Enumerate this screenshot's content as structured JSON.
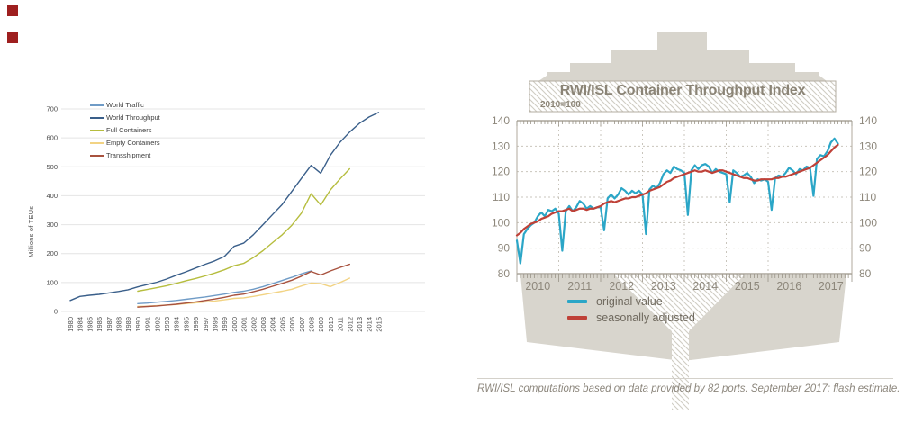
{
  "markers": {
    "color": "#9e1f1f"
  },
  "chart_data": [
    {
      "type": "line",
      "name": "world-container-traffic-chart",
      "ylabel": "Millions of TEUs",
      "y_ticks": [
        0,
        100,
        200,
        300,
        400,
        500,
        600,
        700
      ],
      "ylim": [
        0,
        700
      ],
      "grid": "horizontal",
      "legend_position": "top-left-inside",
      "categories": [
        "1980",
        "1984",
        "1985",
        "1986",
        "1987",
        "1988",
        "1989",
        "1990",
        "1991",
        "1992",
        "1993",
        "1994",
        "1995",
        "1996",
        "1997",
        "1998",
        "1999",
        "2000",
        "2001",
        "2002",
        "2003",
        "2004",
        "2005",
        "2006",
        "2007",
        "2008",
        "2009",
        "2010",
        "2011",
        "2012",
        "2013",
        "2014",
        "2015"
      ],
      "series": [
        {
          "name": "World Traffic",
          "color": "#6f9bc6",
          "start_index": 7,
          "values": [
            27,
            29,
            32,
            35,
            38,
            42,
            46,
            50,
            55,
            60,
            66,
            70,
            77,
            86,
            96,
            107,
            118,
            130,
            140
          ]
        },
        {
          "name": "World Throughput",
          "color": "#3a5f8a",
          "start_index": 0,
          "values": [
            38,
            52,
            56,
            59,
            64,
            69,
            75,
            85,
            93,
            101,
            112,
            125,
            137,
            150,
            163,
            175,
            190,
            225,
            236,
            265,
            300,
            335,
            370,
            415,
            460,
            505,
            478,
            540,
            585,
            620,
            650,
            672,
            688
          ]
        },
        {
          "name": "Full Containers",
          "color": "#b6bd3e",
          "start_index": 7,
          "values": [
            70,
            76,
            82,
            89,
            97,
            106,
            114,
            123,
            133,
            144,
            158,
            166,
            186,
            210,
            238,
            265,
            298,
            340,
            407,
            368,
            420,
            458,
            493
          ]
        },
        {
          "name": "Empty Containers",
          "color": "#f2d383",
          "start_index": 7,
          "values": [
            17,
            18,
            20,
            22,
            24,
            27,
            30,
            33,
            36,
            40,
            45,
            47,
            52,
            58,
            64,
            70,
            77,
            88,
            98,
            96,
            86,
            100,
            115
          ]
        },
        {
          "name": "Transshipment",
          "color": "#a8523e",
          "start_index": 7,
          "values": [
            15,
            17,
            19,
            22,
            25,
            29,
            33,
            38,
            43,
            49,
            56,
            60,
            68,
            77,
            87,
            97,
            108,
            122,
            138,
            126,
            140,
            152,
            163
          ]
        }
      ]
    },
    {
      "type": "line",
      "name": "rwi-isl-container-throughput-index",
      "title": "RWI/ISL Container Throughput Index",
      "subtitle": "2010=100",
      "y_ticks": [
        80,
        90,
        100,
        110,
        120,
        130,
        140
      ],
      "ylim": [
        80,
        140
      ],
      "x_labels": [
        "2010",
        "2011",
        "2012",
        "2013",
        "2014",
        "2015",
        "2016",
        "2017"
      ],
      "grid": "dashed-both-axes",
      "caption": "RWI/ISL computations based on data provided by 82 ports. September 2017: flash estimate.",
      "legend": [
        {
          "label": "original value",
          "color": "#2ba6c7"
        },
        {
          "label": "seasonally adjusted",
          "color": "#bf4138"
        }
      ],
      "series": [
        {
          "name": "original value",
          "color": "#2ba6c7",
          "start": "2010-01",
          "frequency": "monthly",
          "values": [
            93,
            84,
            95.5,
            97.5,
            99,
            100,
            102.5,
            104,
            102.5,
            105,
            104.5,
            105.5,
            103.5,
            89,
            104.5,
            106.5,
            104.5,
            106,
            108.5,
            107.5,
            105.5,
            106.5,
            105.5,
            106,
            106,
            97,
            109.5,
            111,
            109.5,
            111,
            113.5,
            112.5,
            111,
            112.5,
            111.5,
            112.5,
            111,
            95.5,
            113,
            114.5,
            113.5,
            115.5,
            119,
            120.5,
            119.5,
            122,
            121,
            120.5,
            119.5,
            103,
            120.5,
            122.5,
            121,
            122.5,
            123,
            122,
            119.5,
            121,
            120,
            119.5,
            119,
            108,
            120.5,
            119.5,
            118,
            118.5,
            119.5,
            118,
            115.5,
            117,
            116.5,
            117,
            116,
            105,
            117.5,
            118.5,
            118,
            119.5,
            121.5,
            120.5,
            119,
            121,
            120.5,
            122,
            121.5,
            110.5,
            125,
            126.5,
            126,
            128,
            131.5,
            133,
            131
          ]
        },
        {
          "name": "seasonally adjusted",
          "color": "#bf4138",
          "start": "2010-01",
          "frequency": "monthly",
          "values": [
            95,
            96,
            97.5,
            98.5,
            99.5,
            100,
            100.5,
            101.5,
            102,
            102.5,
            103.5,
            104,
            104.5,
            104.5,
            105,
            105.5,
            104.5,
            105,
            105.5,
            105.5,
            105,
            105.5,
            105.5,
            106,
            106.5,
            107.5,
            108,
            108.5,
            108,
            108.5,
            109,
            109.5,
            109.5,
            110,
            110,
            110.5,
            111,
            111.5,
            112.5,
            113,
            113.5,
            114,
            115,
            116,
            116.5,
            117.5,
            118,
            118.5,
            119,
            119.5,
            120,
            120.5,
            120,
            120,
            120.5,
            120,
            119.5,
            120,
            120.5,
            120.5,
            120,
            119.5,
            119,
            118.5,
            118,
            117.5,
            117.5,
            117,
            116.5,
            116.5,
            117,
            117,
            117,
            117,
            117.5,
            117.5,
            118,
            118,
            118.5,
            119,
            119.5,
            120,
            120.5,
            121,
            121.5,
            122.5,
            123.5,
            124.5,
            125.5,
            126.5,
            128,
            129.5,
            130.5
          ]
        }
      ]
    }
  ]
}
